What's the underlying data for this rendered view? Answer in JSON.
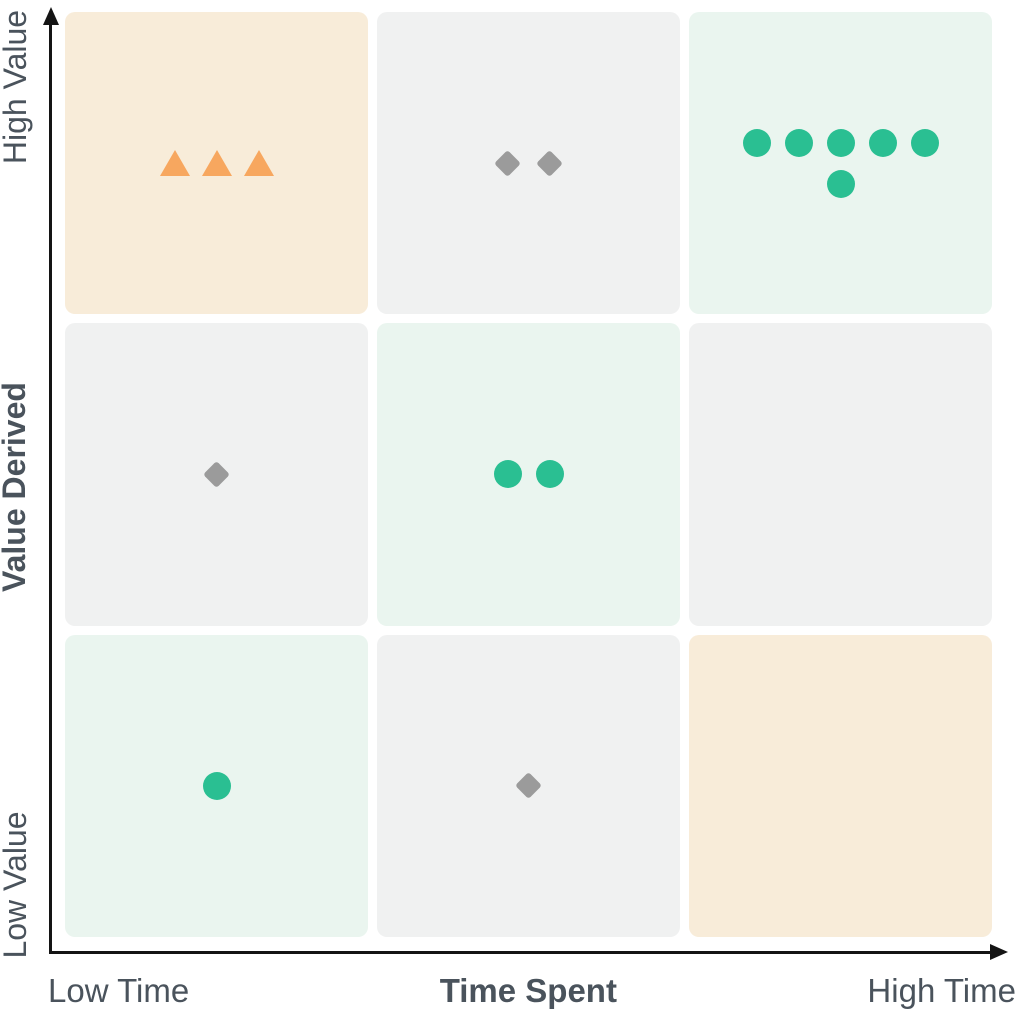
{
  "axes": {
    "x_label": "Time Spent",
    "x_low": "Low Time",
    "x_high": "High Time",
    "y_label": "Value Derived",
    "y_low": "Low Value",
    "y_high": "High Value"
  },
  "colors": {
    "cell": {
      "peach": "#f8ecd9",
      "gray": "#f0f1f1",
      "mint": "#eaf5ef"
    },
    "marker": {
      "orange": "#f7a75f",
      "gray": "#9b9b9b",
      "green": "#2abf92"
    },
    "text": "#4a535c",
    "axis": "#141414"
  },
  "chart_data": {
    "type": "scatter",
    "subtype": "3x3-priority-matrix",
    "title": "",
    "x_axis": {
      "label": "Time Spent",
      "min_label": "Low Time",
      "max_label": "High Time"
    },
    "y_axis": {
      "label": "Value Derived",
      "min_label": "Low Value",
      "max_label": "High Value"
    },
    "legend": "none",
    "grid": "off",
    "cells": [
      {
        "row": "high-value",
        "col": "low-time",
        "background": "peach",
        "marker": "triangle",
        "marker_color": "orange",
        "count": 3,
        "marker_rows": [
          3
        ]
      },
      {
        "row": "high-value",
        "col": "mid-time",
        "background": "gray",
        "marker": "diamond",
        "marker_color": "gray",
        "count": 2,
        "marker_rows": [
          2
        ]
      },
      {
        "row": "high-value",
        "col": "high-time",
        "background": "mint",
        "marker": "circle",
        "marker_color": "green",
        "count": 6,
        "marker_rows": [
          5,
          1
        ]
      },
      {
        "row": "mid-value",
        "col": "low-time",
        "background": "gray",
        "marker": "diamond",
        "marker_color": "gray",
        "count": 1,
        "marker_rows": [
          1
        ]
      },
      {
        "row": "mid-value",
        "col": "mid-time",
        "background": "mint",
        "marker": "circle",
        "marker_color": "green",
        "count": 2,
        "marker_rows": [
          2
        ]
      },
      {
        "row": "mid-value",
        "col": "high-time",
        "background": "gray",
        "marker": null,
        "marker_color": null,
        "count": 0,
        "marker_rows": []
      },
      {
        "row": "low-value",
        "col": "low-time",
        "background": "mint",
        "marker": "circle",
        "marker_color": "green",
        "count": 1,
        "marker_rows": [
          1
        ]
      },
      {
        "row": "low-value",
        "col": "mid-time",
        "background": "gray",
        "marker": "diamond",
        "marker_color": "gray",
        "count": 1,
        "marker_rows": [
          1
        ]
      },
      {
        "row": "low-value",
        "col": "high-time",
        "background": "peach",
        "marker": null,
        "marker_color": null,
        "count": 0,
        "marker_rows": []
      }
    ]
  }
}
